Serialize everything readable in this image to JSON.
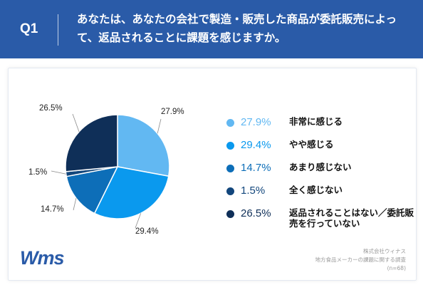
{
  "header": {
    "q_label": "Q1",
    "question": "あなたは、あなたの会社で製造・販売した商品が委託販売によって、返品されることに課題を感じますか。"
  },
  "chart_data": {
    "type": "pie",
    "slices": [
      {
        "label": "非常に感じる",
        "value": 27.9,
        "display": "27.9%",
        "color": "#62b8f2"
      },
      {
        "label": "やや感じる",
        "value": 29.4,
        "display": "29.4%",
        "color": "#0a99ee"
      },
      {
        "label": "あまり感じない",
        "value": 14.7,
        "display": "14.7%",
        "color": "#0d6eb8"
      },
      {
        "label": "全く感じない",
        "value": 1.5,
        "display": "1.5%",
        "color": "#12467c"
      },
      {
        "label": "返品されることはない／委託販売を行っていない",
        "value": 26.5,
        "display": "26.5%",
        "color": "#0f2f58"
      }
    ]
  },
  "legend": {
    "items": [
      {
        "pct": "27.9%",
        "label": "非常に感じる",
        "color": "#62b8f2"
      },
      {
        "pct": "29.4%",
        "label": "やや感じる",
        "color": "#0a99ee"
      },
      {
        "pct": "14.7%",
        "label": "あまり感じない",
        "color": "#0d6eb8"
      },
      {
        "pct": "1.5%",
        "label": "全く感じない",
        "color": "#12467c"
      },
      {
        "pct": "26.5%",
        "label": "返品されることはない／委託販売を行っていない",
        "color": "#0f2f58"
      }
    ]
  },
  "footer": {
    "logo": "Wms",
    "source_line1": "株式会社ウィナス",
    "source_line2": "地方食品メーカーの課題に関する調査",
    "source_line3": "(n=68)"
  }
}
